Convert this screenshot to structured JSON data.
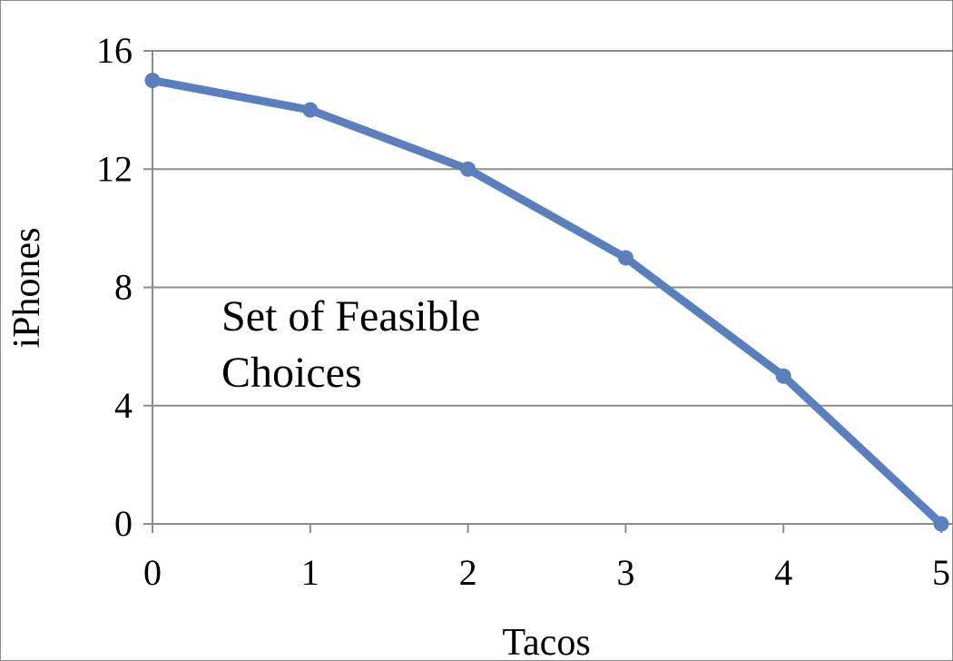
{
  "chart_data": {
    "type": "line",
    "xlabel": "Tacos",
    "ylabel": "iPhones",
    "x": [
      0,
      1,
      2,
      3,
      4,
      5
    ],
    "series": [
      {
        "values": [
          15,
          14,
          12,
          9,
          5,
          0
        ]
      }
    ],
    "xlim": [
      0,
      5
    ],
    "ylim": [
      0,
      16
    ],
    "xticks": [
      "0",
      "1",
      "2",
      "3",
      "4",
      "5"
    ],
    "yticks": [
      "0",
      "4",
      "8",
      "12",
      "16"
    ],
    "grid": "horizontal",
    "annotation_lines": [
      "Set of Feasible",
      "Choices"
    ],
    "colors": {
      "line": "#5b7fbd",
      "grid": "#8c8c8c"
    }
  }
}
